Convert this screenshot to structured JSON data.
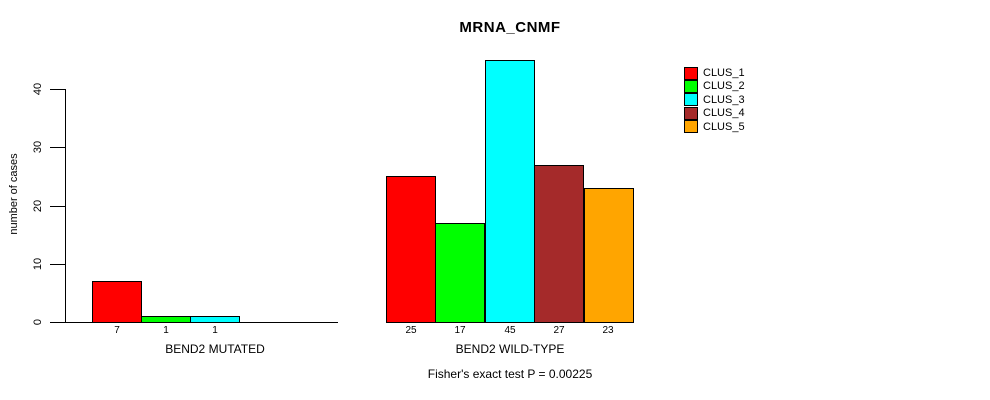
{
  "title": "MRNA_CNMF",
  "chart_data": {
    "type": "bar",
    "title": "MRNA_CNMF",
    "xlabel": "",
    "ylabel": "number of cases",
    "ylim": [
      0,
      45
    ],
    "yticks": [
      0,
      10,
      20,
      30,
      40
    ],
    "grid": false,
    "legend_position": "top-right",
    "categories": [
      "BEND2 MUTATED",
      "BEND2 WILD-TYPE"
    ],
    "series": [
      {
        "name": "CLUS_1",
        "color": "#ff0000",
        "values": [
          7,
          25
        ]
      },
      {
        "name": "CLUS_2",
        "color": "#00ff00",
        "values": [
          1,
          17
        ]
      },
      {
        "name": "CLUS_3",
        "color": "#00ffff",
        "values": [
          1,
          45
        ]
      },
      {
        "name": "CLUS_4",
        "color": "#a52a2a",
        "values": [
          0,
          27
        ]
      },
      {
        "name": "CLUS_5",
        "color": "#ffa500",
        "values": [
          0,
          23
        ]
      }
    ],
    "bar_value_labels": [
      [
        "7",
        "1",
        "1",
        "",
        ""
      ],
      [
        "25",
        "17",
        "45",
        "27",
        "23"
      ]
    ],
    "annotation": "Fisher's exact test P = 0.00225"
  },
  "colors": {
    "background": "#ffffff",
    "axis": "#000000",
    "bar_border": "#000000",
    "text": "#000000"
  }
}
